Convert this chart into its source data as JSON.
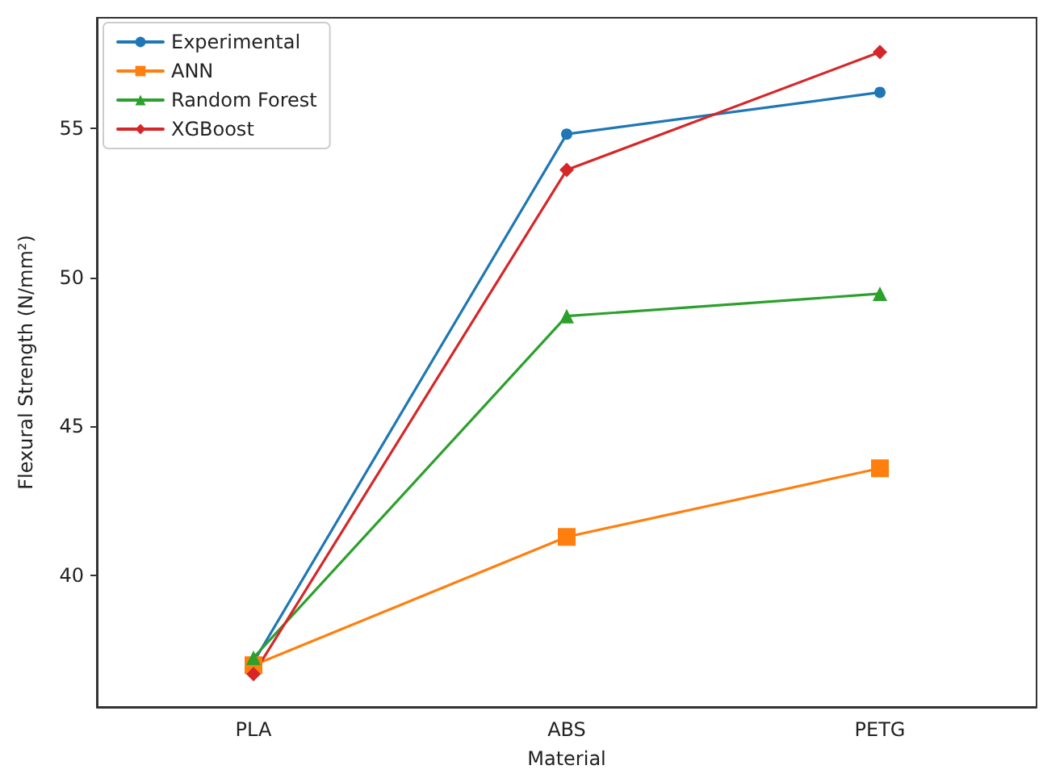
{
  "chart_data": {
    "type": "line",
    "xlabel": "Material",
    "ylabel": "Flexural Strength (N/mm²)",
    "categories": [
      "PLA",
      "ABS",
      "PETG"
    ],
    "series": [
      {
        "name": "Experimental",
        "color": "#1f77b4",
        "marker": "circle",
        "values": [
          37.1,
          54.8,
          56.2
        ]
      },
      {
        "name": "ANN",
        "color": "#ff7f0e",
        "marker": "square",
        "values": [
          37.0,
          41.3,
          43.6
        ]
      },
      {
        "name": "Random Forest",
        "color": "#2ca02c",
        "marker": "triangle",
        "values": [
          37.25,
          48.7,
          49.45
        ]
      },
      {
        "name": "XGBoost",
        "color": "#d62728",
        "marker": "diamond",
        "values": [
          36.7,
          53.6,
          57.55
        ]
      }
    ],
    "ylim": [
      35.6,
      58.7
    ],
    "yticks": [
      40,
      45,
      50,
      55
    ],
    "grid": false,
    "legend": "top left"
  }
}
